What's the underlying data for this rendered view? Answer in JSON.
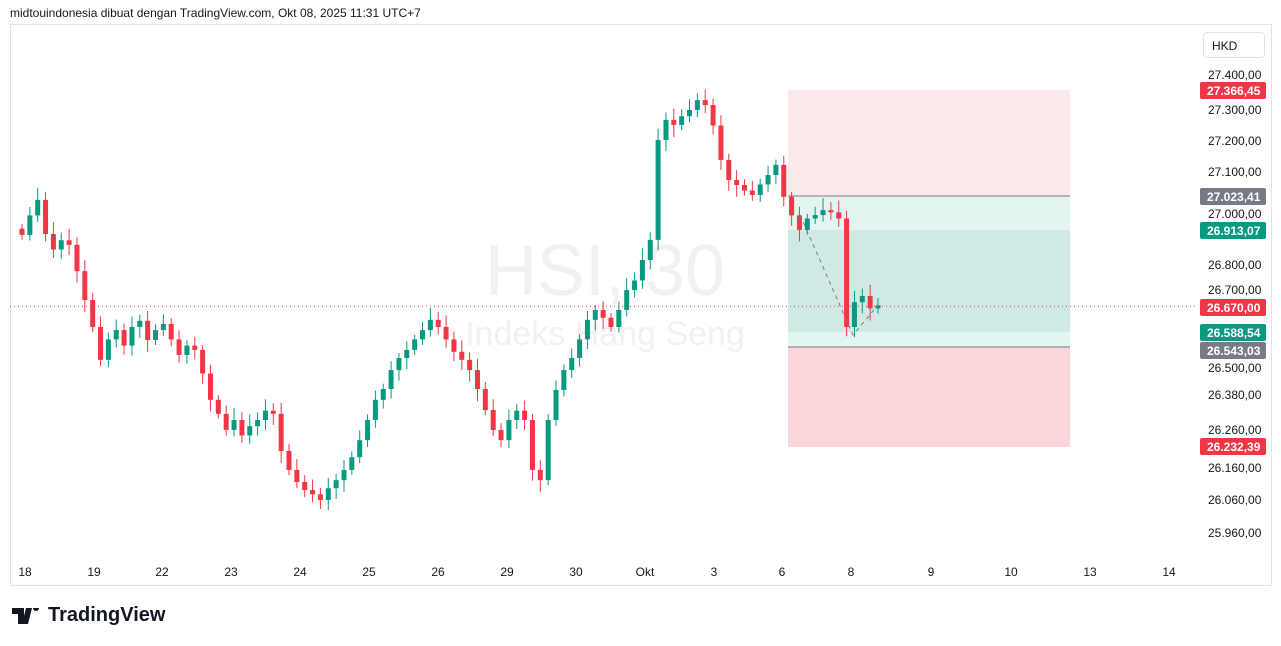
{
  "header": {
    "attribution": "midtouindonesia dibuat dengan TradingView.com, Okt 08, 2025 11:31 UTC+7"
  },
  "currency": "HKD",
  "watermark": {
    "symbol": "HSI, 30",
    "name": "Indeks Hang Seng"
  },
  "brand": "TradingView",
  "colors": {
    "up": "#089981",
    "down": "#f23645",
    "last": "#f23645",
    "neutral": "#787b86"
  },
  "chart_data": {
    "type": "candlestick",
    "interval": "30",
    "x_tick_labels": [
      "18",
      "19",
      "22",
      "23",
      "24",
      "25",
      "26",
      "29",
      "30",
      "Okt",
      "3",
      "6",
      "8",
      "9",
      "10",
      "13",
      "14"
    ],
    "y_tick_labels": [
      "27.400,00",
      "27.300,00",
      "27.200,00",
      "27.100,00",
      "27.000,00",
      "26.800,00",
      "26.700,00",
      "26.500,00",
      "26.380,00",
      "26.260,00",
      "26.160,00",
      "26.060,00",
      "25.960,00"
    ],
    "closes": [
      26897,
      26960,
      27010,
      26900,
      26850,
      26880,
      26865,
      26780,
      26687,
      26600,
      26494,
      26560,
      26590,
      26540,
      26600,
      26620,
      26558,
      26590,
      26610,
      26560,
      26510,
      26540,
      26526,
      26450,
      26365,
      26320,
      26268,
      26300,
      26250,
      26280,
      26300,
      26330,
      26320,
      26200,
      26139,
      26100,
      26074,
      26060,
      26042,
      26080,
      26106,
      26139,
      26180,
      26235,
      26300,
      26365,
      26400,
      26461,
      26500,
      26526,
      26560,
      26590,
      26623,
      26600,
      26560,
      26520,
      26494,
      26461,
      26400,
      26332,
      26268,
      26235,
      26300,
      26330,
      26300,
      26139,
      26106,
      26300,
      26397,
      26461,
      26500,
      26560,
      26623,
      26655,
      26630,
      26600,
      26655,
      26719,
      26750,
      26816,
      26881,
      27203,
      27268,
      27252,
      27280,
      27300,
      27332,
      27316,
      27250,
      27139,
      27074,
      27058,
      27040,
      27026,
      27060,
      27090,
      27123,
      27020,
      26960,
      26913,
      26950,
      26961,
      26977,
      26970,
      26950,
      26600,
      26680,
      26700,
      26660,
      26670
    ],
    "last_price": "26.670,00",
    "price_labels": [
      {
        "text": "27.366,45",
        "color": "#f23645"
      },
      {
        "text": "27.023,41",
        "color": "#787b86"
      },
      {
        "text": "26.913,07",
        "color": "#089981"
      },
      {
        "text": "26.670,00",
        "color": "#f23645"
      },
      {
        "text": "26.588,54",
        "color": "#089981"
      },
      {
        "text": "26.543,03",
        "color": "#787b86"
      },
      {
        "text": "26.232,39",
        "color": "#f23645"
      }
    ]
  }
}
